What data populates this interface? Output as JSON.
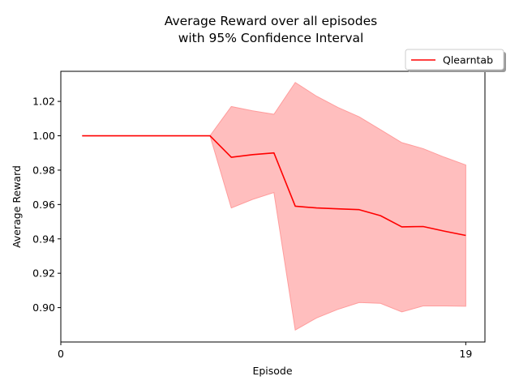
{
  "chart_data": {
    "type": "line",
    "title": [
      "Average Reward over all episodes",
      "with 95% Confidence Interval"
    ],
    "xlabel": "Episode",
    "ylabel": "Average Reward",
    "x_tick_labels": [
      "0",
      "19"
    ],
    "x_ticks": [
      0,
      19
    ],
    "y_ticks": [
      0.9,
      0.92,
      0.94,
      0.96,
      0.98,
      1.0,
      1.02
    ],
    "y_tick_labels": [
      "0.90",
      "0.92",
      "0.94",
      "0.96",
      "0.98",
      "1.00",
      "1.02"
    ],
    "xlim": [
      0,
      19.9
    ],
    "ylim": [
      0.88,
      1.0375
    ],
    "grid": false,
    "legend_position": "top-right-outside",
    "series": [
      {
        "name": "Qlearntab",
        "color": "#ff0000",
        "band_color": "#ffbebe",
        "x": [
          1,
          2,
          3,
          4,
          5,
          6,
          7,
          8,
          9,
          10,
          11,
          12,
          13,
          14,
          15,
          16,
          17,
          18,
          19
        ],
        "mean": [
          1.0,
          1.0,
          1.0,
          1.0,
          1.0,
          1.0,
          1.0,
          0.9875,
          0.989,
          0.99,
          0.959,
          0.958,
          0.9575,
          0.957,
          0.9535,
          0.947,
          0.9472,
          0.9445,
          0.942
        ],
        "lower": [
          1.0,
          1.0,
          1.0,
          1.0,
          1.0,
          1.0,
          1.0,
          0.958,
          0.963,
          0.967,
          0.887,
          0.894,
          0.899,
          0.903,
          0.9025,
          0.8975,
          0.901,
          0.901,
          0.9008
        ],
        "upper": [
          1.0,
          1.0,
          1.0,
          1.0,
          1.0,
          1.0,
          1.0,
          1.017,
          1.0145,
          1.0125,
          1.031,
          1.023,
          1.0165,
          1.011,
          1.0035,
          0.996,
          0.9925,
          0.9875,
          0.983
        ]
      }
    ]
  }
}
